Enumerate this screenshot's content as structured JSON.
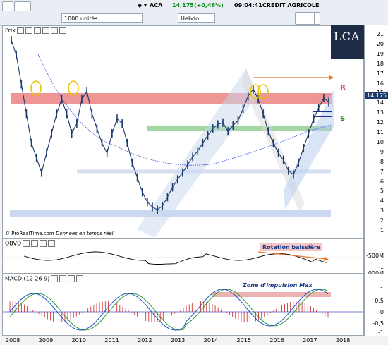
{
  "toolbar": {
    "ticker": "ACA",
    "price": "14,175",
    "change": "(+0,46%)",
    "time": "09:04:41",
    "name": "CREDIT AGRICOLE",
    "quantity": "1000 unités",
    "period": "Hebdo"
  },
  "logo": {
    "text": "LCA"
  },
  "price_panel": {
    "title": "Prix",
    "last_price": "14,175",
    "resistance_label": "R",
    "support_label": "S",
    "credit": "© ProRealTime.com",
    "credit_note": "Données en temps réel",
    "yticks": [
      "21",
      "20",
      "19",
      "18",
      "17",
      "16",
      "15",
      "14",
      "13",
      "12",
      "11",
      "10",
      "9",
      "8",
      "7",
      "6",
      "5",
      "4",
      "3",
      "2",
      "1"
    ]
  },
  "obvd_panel": {
    "title": "OBVD",
    "annotation": "Rotation baissière",
    "yticks": [
      "-500M",
      "-1 000M"
    ]
  },
  "macd_panel": {
    "title": "MACD (12 26 9)",
    "annotation": "Zone d'impulsion Max",
    "yticks": [
      "1",
      "0,5",
      "0",
      "-0,5",
      "-1"
    ]
  },
  "xaxis": [
    "2008",
    "2009",
    "2010",
    "2011",
    "2012",
    "2013",
    "2014",
    "2015",
    "2016",
    "2017",
    "2018"
  ],
  "colors": {
    "price_bars": "#1b3a6b",
    "resistance_band": "#e87373",
    "support_band": "#7cc47c",
    "channel": "#c8d8f0",
    "arrow": "#e8782a",
    "macd_line": "#1f4fcf",
    "signal_line": "#2a9a2a",
    "histogram": "#cc2222"
  }
}
